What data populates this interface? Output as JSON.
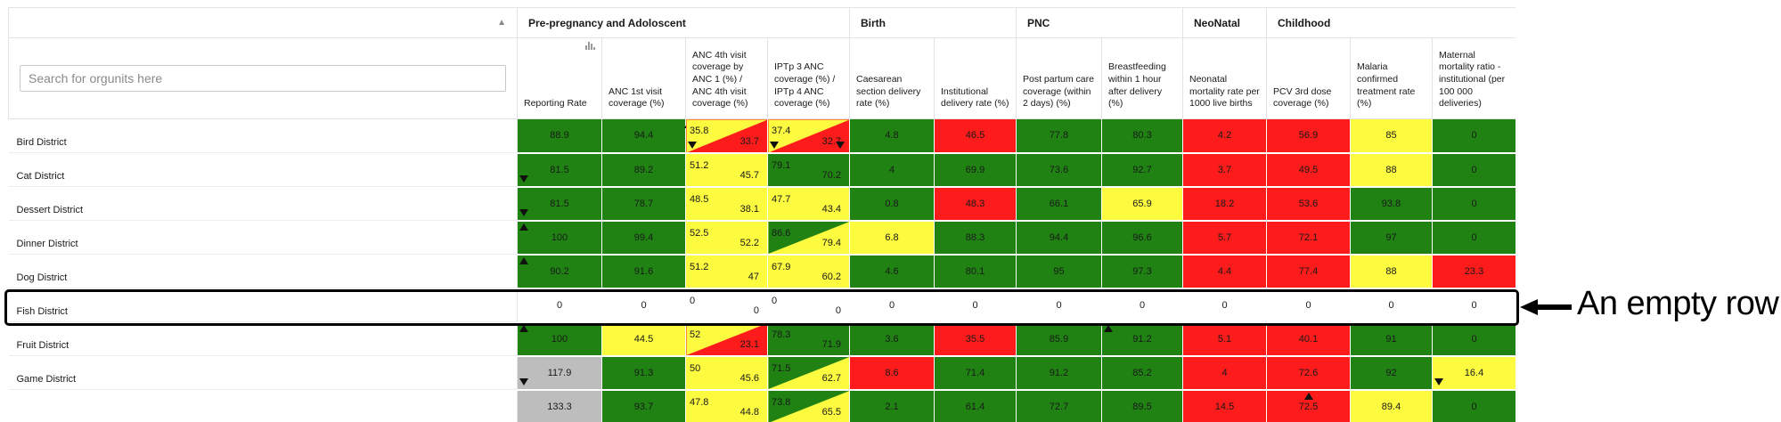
{
  "search": {
    "placeholder": "Search for orgunits here"
  },
  "sort_indicator": "▲",
  "groups": [
    {
      "label": "Pre-pregnancy and Adoloscent",
      "span": 4
    },
    {
      "label": "Birth",
      "span": 2
    },
    {
      "label": "PNC",
      "span": 2
    },
    {
      "label": "NeoNatal",
      "span": 1
    },
    {
      "label": "Childhood",
      "span": 3
    }
  ],
  "columns": [
    "Reporting Rate",
    "ANC 1st visit coverage (%)",
    "ANC 4th visit coverage by ANC 1 (%) / ANC 4th visit coverage (%)",
    "IPTp 3 ANC coverage (%) / IPTp 4 ANC coverage (%)",
    "Caesarean section delivery rate (%)",
    "Institutional delivery rate (%)",
    "Post partum care coverage (within 2 days) (%)",
    "Breastfeeding within 1 hour after delivery (%)",
    "Neonatal mortality rate per 1000 live births",
    "PCV 3rd dose coverage (%)",
    "Malaria confirmed treatment rate (%)",
    "Maternal mortality ratio - institutional (per 100 000 deliveries)"
  ],
  "colors": {
    "green": "#1f8213",
    "red": "#fd1b1b",
    "yellow": "#fcfb40",
    "grey": "#bdbdbd",
    "white": "#ffffff"
  },
  "rows": [
    {
      "name": "Bird District",
      "cells": [
        {
          "v": "88.9",
          "c": "g"
        },
        {
          "v": "94.4",
          "c": "g",
          "arrow": "up-midl"
        },
        {
          "split": [
            "35.8",
            "33.7"
          ],
          "c1": "y",
          "c2": "r",
          "arrows": [
            "down-bl"
          ]
        },
        {
          "split": [
            "37.4",
            "32.7"
          ],
          "c1": "y",
          "c2": "r",
          "arrows": [
            "down-bl",
            "down-br"
          ]
        },
        {
          "v": "4.8",
          "c": "g"
        },
        {
          "v": "46.5",
          "c": "r"
        },
        {
          "v": "77.8",
          "c": "g"
        },
        {
          "v": "80.3",
          "c": "g"
        },
        {
          "v": "4.2",
          "c": "r"
        },
        {
          "v": "56.9",
          "c": "r"
        },
        {
          "v": "85",
          "c": "y"
        },
        {
          "v": "0",
          "c": "g"
        }
      ]
    },
    {
      "name": "Cat District",
      "cells": [
        {
          "v": "81.5",
          "c": "g",
          "arrow": "down-bl"
        },
        {
          "v": "89.2",
          "c": "g"
        },
        {
          "split": [
            "51.2",
            "45.7"
          ],
          "c1": "y",
          "c2": "y"
        },
        {
          "split": [
            "79.1",
            "70.2"
          ],
          "c1": "g",
          "c2": "g"
        },
        {
          "v": "4",
          "c": "g"
        },
        {
          "v": "69.9",
          "c": "g"
        },
        {
          "v": "73.6",
          "c": "g"
        },
        {
          "v": "92.7",
          "c": "g"
        },
        {
          "v": "3.7",
          "c": "r"
        },
        {
          "v": "49.5",
          "c": "r"
        },
        {
          "v": "88",
          "c": "y"
        },
        {
          "v": "0",
          "c": "g"
        }
      ]
    },
    {
      "name": "Dessert District",
      "cells": [
        {
          "v": "81.5",
          "c": "g",
          "arrow": "down-bl"
        },
        {
          "v": "78.7",
          "c": "g"
        },
        {
          "split": [
            "48.5",
            "38.1"
          ],
          "c1": "y",
          "c2": "y"
        },
        {
          "split": [
            "47.7",
            "43.4"
          ],
          "c1": "y",
          "c2": "y"
        },
        {
          "v": "0.8",
          "c": "g"
        },
        {
          "v": "48.3",
          "c": "r"
        },
        {
          "v": "66.1",
          "c": "g"
        },
        {
          "v": "65.9",
          "c": "y"
        },
        {
          "v": "18.2",
          "c": "r"
        },
        {
          "v": "53.6",
          "c": "r"
        },
        {
          "v": "93.8",
          "c": "g"
        },
        {
          "v": "0",
          "c": "g"
        }
      ]
    },
    {
      "name": "Dinner District",
      "cells": [
        {
          "v": "100",
          "c": "g",
          "arrow": "up-tl"
        },
        {
          "v": "99.4",
          "c": "g"
        },
        {
          "split": [
            "52.5",
            "52.2"
          ],
          "c1": "y",
          "c2": "y"
        },
        {
          "split": [
            "86.6",
            "79.4"
          ],
          "c1": "g",
          "c2": "y"
        },
        {
          "v": "6.8",
          "c": "y"
        },
        {
          "v": "88.3",
          "c": "g"
        },
        {
          "v": "94.4",
          "c": "g"
        },
        {
          "v": "96.6",
          "c": "g"
        },
        {
          "v": "5.7",
          "c": "r"
        },
        {
          "v": "72.1",
          "c": "r"
        },
        {
          "v": "97",
          "c": "g"
        },
        {
          "v": "0",
          "c": "g"
        }
      ]
    },
    {
      "name": "Dog District",
      "cells": [
        {
          "v": "90.2",
          "c": "g",
          "arrow": "up-tl"
        },
        {
          "v": "91.6",
          "c": "g"
        },
        {
          "split": [
            "51.2",
            "47"
          ],
          "c1": "y",
          "c2": "y"
        },
        {
          "split": [
            "67.9",
            "60.2"
          ],
          "c1": "y",
          "c2": "y"
        },
        {
          "v": "4.6",
          "c": "g"
        },
        {
          "v": "80.1",
          "c": "g"
        },
        {
          "v": "95",
          "c": "g"
        },
        {
          "v": "97.3",
          "c": "g"
        },
        {
          "v": "4.4",
          "c": "r"
        },
        {
          "v": "77.4",
          "c": "r"
        },
        {
          "v": "88",
          "c": "y"
        },
        {
          "v": "23.3",
          "c": "r"
        }
      ]
    },
    {
      "name": "Fish District",
      "cells": [
        {
          "v": "0",
          "c": "w"
        },
        {
          "v": "0",
          "c": "w"
        },
        {
          "split": [
            "0",
            "0"
          ],
          "c1": "w",
          "c2": "w"
        },
        {
          "split": [
            "0",
            "0"
          ],
          "c1": "w",
          "c2": "w"
        },
        {
          "v": "0",
          "c": "w"
        },
        {
          "v": "0",
          "c": "w"
        },
        {
          "v": "0",
          "c": "w"
        },
        {
          "v": "0",
          "c": "w"
        },
        {
          "v": "0",
          "c": "w"
        },
        {
          "v": "0",
          "c": "w"
        },
        {
          "v": "0",
          "c": "w"
        },
        {
          "v": "0",
          "c": "w"
        }
      ]
    },
    {
      "name": "Fruit District",
      "cells": [
        {
          "v": "100",
          "c": "g",
          "arrow": "up-tl"
        },
        {
          "v": "44.5",
          "c": "y"
        },
        {
          "split": [
            "52",
            "23.1"
          ],
          "c1": "y",
          "c2": "r"
        },
        {
          "split": [
            "78.3",
            "71.9"
          ],
          "c1": "g",
          "c2": "g"
        },
        {
          "v": "3.6",
          "c": "g"
        },
        {
          "v": "35.5",
          "c": "r"
        },
        {
          "v": "85.9",
          "c": "g"
        },
        {
          "v": "91.2",
          "c": "g",
          "arrow": "up-tl"
        },
        {
          "v": "5.1",
          "c": "r"
        },
        {
          "v": "40.1",
          "c": "r"
        },
        {
          "v": "91",
          "c": "g"
        },
        {
          "v": "0",
          "c": "g"
        }
      ]
    },
    {
      "name": "Game District",
      "cells": [
        {
          "v": "117.9",
          "c": "gr",
          "arrow": "down-bl"
        },
        {
          "v": "91.3",
          "c": "g"
        },
        {
          "split": [
            "50",
            "45.6"
          ],
          "c1": "y",
          "c2": "y"
        },
        {
          "split": [
            "71.5",
            "62.7"
          ],
          "c1": "g",
          "c2": "y"
        },
        {
          "v": "8.6",
          "c": "r"
        },
        {
          "v": "71.4",
          "c": "g"
        },
        {
          "v": "91.2",
          "c": "g"
        },
        {
          "v": "85.2",
          "c": "g"
        },
        {
          "v": "4",
          "c": "r"
        },
        {
          "v": "72.6",
          "c": "r"
        },
        {
          "v": "92",
          "c": "g"
        },
        {
          "v": "16.4",
          "c": "y",
          "arrow": "down-bl"
        }
      ]
    },
    {
      "name": "",
      "cells": [
        {
          "v": "133.3",
          "c": "gr"
        },
        {
          "v": "93.7",
          "c": "g"
        },
        {
          "split": [
            "47.8",
            "44.8"
          ],
          "c1": "y",
          "c2": "y"
        },
        {
          "split": [
            "73.8",
            "65.5"
          ],
          "c1": "g",
          "c2": "y"
        },
        {
          "v": "2.1",
          "c": "g"
        },
        {
          "v": "61.4",
          "c": "g"
        },
        {
          "v": "72.7",
          "c": "g"
        },
        {
          "v": "89.5",
          "c": "g"
        },
        {
          "v": "14.5",
          "c": "r"
        },
        {
          "v": "72.5",
          "c": "r",
          "arrow": "up-mid"
        },
        {
          "v": "89.4",
          "c": "y"
        },
        {
          "v": "0",
          "c": "g"
        }
      ]
    }
  ],
  "annotation": {
    "text": "An empty row"
  }
}
